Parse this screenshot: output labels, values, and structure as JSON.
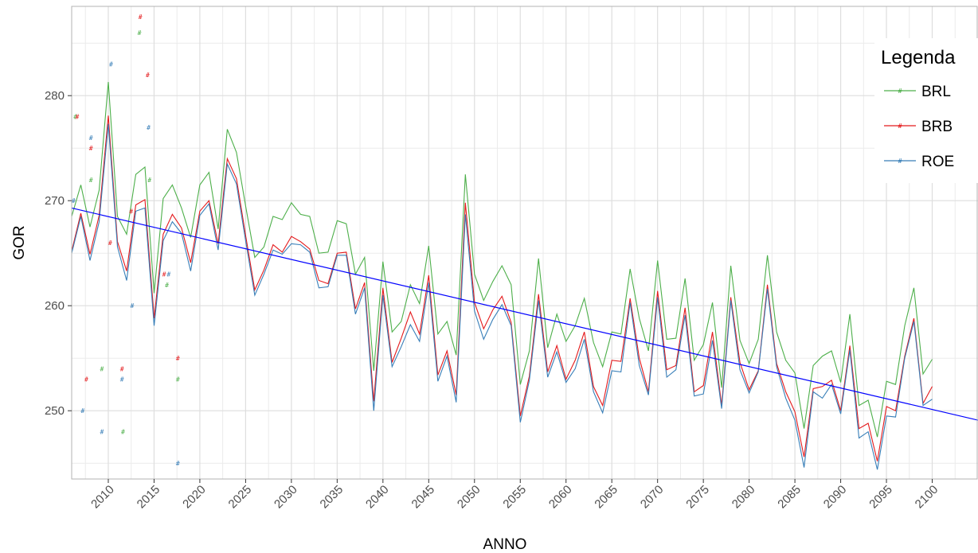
{
  "chart_data": {
    "type": "line",
    "title": "",
    "xlabel": "ANNO",
    "ylabel": "GOR",
    "xlim": [
      2006,
      2105
    ],
    "ylim": [
      243.5,
      288.5
    ],
    "x_ticks": [
      2010,
      2015,
      2020,
      2025,
      2030,
      2035,
      2040,
      2045,
      2050,
      2055,
      2060,
      2065,
      2070,
      2075,
      2080,
      2085,
      2090,
      2095,
      2100
    ],
    "y_ticks": [
      250,
      260,
      270,
      280
    ],
    "grid": true,
    "legend": {
      "title": "Legenda",
      "position": "right",
      "entries": [
        "BRL",
        "BRB",
        "ROE"
      ]
    },
    "x": [
      2006,
      2007,
      2008,
      2009,
      2010,
      2011,
      2012,
      2013,
      2014,
      2015,
      2016,
      2017,
      2018,
      2019,
      2020,
      2021,
      2022,
      2023,
      2024,
      2025,
      2026,
      2027,
      2028,
      2029,
      2030,
      2031,
      2032,
      2033,
      2034,
      2035,
      2036,
      2037,
      2038,
      2039,
      2040,
      2041,
      2042,
      2043,
      2044,
      2045,
      2046,
      2047,
      2048,
      2049,
      2050,
      2051,
      2052,
      2053,
      2054,
      2055,
      2056,
      2057,
      2058,
      2059,
      2060,
      2061,
      2062,
      2063,
      2064,
      2065,
      2066,
      2067,
      2068,
      2069,
      2070,
      2071,
      2072,
      2073,
      2074,
      2075,
      2076,
      2077,
      2078,
      2079,
      2080,
      2081,
      2082,
      2083,
      2084,
      2085,
      2086,
      2087,
      2088,
      2089,
      2090,
      2091,
      2092,
      2093,
      2094,
      2095,
      2096,
      2097,
      2098,
      2099,
      2100
    ],
    "series": [
      {
        "name": "BRL",
        "color": "#4daf4a",
        "values": [
          268.5,
          271.5,
          267.5,
          271,
          281.3,
          268.5,
          266.8,
          272.5,
          273.2,
          261.2,
          270.2,
          271.5,
          269.3,
          266.5,
          271.5,
          272.7,
          267.3,
          276.8,
          274.6,
          269.5,
          264.6,
          265.6,
          268.5,
          268.2,
          269.8,
          268.7,
          268.5,
          265,
          265.1,
          268.1,
          267.8,
          263,
          264.6,
          253.8,
          264.2,
          257.5,
          258.5,
          262,
          260.2,
          265.7,
          257.3,
          258.5,
          255.3,
          272.5,
          263,
          260.5,
          262.3,
          263.8,
          262,
          252.5,
          255.7,
          264.5,
          256,
          259.2,
          256.6,
          258.1,
          260.7,
          256.5,
          254.2,
          257.5,
          257.3,
          263.5,
          258.8,
          255.7,
          264.3,
          256.8,
          256.9,
          262.6,
          254.8,
          256.3,
          260.3,
          252.2,
          263.8,
          256.7,
          254.5,
          256.8,
          264.8,
          257.5,
          254.8,
          253.6,
          248.3,
          254.3,
          255.2,
          255.7,
          252.7,
          259.2,
          250.5,
          251,
          247.5,
          252.8,
          252.5,
          258.1,
          261.7,
          253.5,
          254.9
        ]
      },
      {
        "name": "BRB",
        "color": "#e41a1c",
        "values": [
          265.2,
          268.8,
          264.9,
          268.6,
          278.1,
          266.1,
          263.3,
          269.6,
          270.1,
          258.8,
          266.8,
          268.7,
          267.4,
          264.1,
          269,
          270,
          265.9,
          274,
          272.1,
          266.7,
          261.5,
          263.4,
          265.8,
          265.1,
          266.6,
          266.1,
          265.4,
          262.4,
          262.1,
          265,
          265.1,
          259.7,
          262.2,
          250.9,
          261.7,
          254.6,
          256.9,
          259.4,
          257.3,
          262.9,
          253.4,
          255.7,
          251.5,
          269.8,
          260.3,
          257.8,
          259.6,
          260.9,
          258.4,
          249.5,
          253.3,
          261.1,
          253.7,
          256.2,
          253,
          254.8,
          257.5,
          252.3,
          250.5,
          254.8,
          254.7,
          260.7,
          255,
          251.8,
          261.4,
          253.9,
          254.3,
          259.8,
          251.8,
          252.4,
          257.5,
          250.5,
          260.8,
          254.6,
          252,
          253.8,
          262,
          254.5,
          251.8,
          249.9,
          245.6,
          252.1,
          252.3,
          252.9,
          250,
          256.2,
          248.3,
          248.8,
          245.2,
          250.4,
          250,
          255.2,
          258.8,
          250.7,
          252.3
        ]
      },
      {
        "name": "ROE",
        "color": "#377eb8",
        "values": [
          265,
          268.5,
          264.3,
          268,
          277.3,
          265.6,
          262.4,
          269,
          269.3,
          258.1,
          266.2,
          268,
          266.9,
          263.3,
          268.6,
          269.7,
          265.3,
          273.5,
          271.6,
          266.2,
          261,
          263,
          265.3,
          264.9,
          265.9,
          265.8,
          265.1,
          261.7,
          261.8,
          264.8,
          264.8,
          259.2,
          261.7,
          250,
          261,
          254.2,
          256.1,
          258.2,
          256.6,
          262.2,
          252.8,
          255.2,
          250.8,
          268.7,
          259.5,
          256.8,
          258.7,
          260.1,
          258.1,
          248.9,
          252.9,
          260.5,
          253.2,
          255.6,
          252.7,
          254,
          256.8,
          251.8,
          249.8,
          253.8,
          253.7,
          260.3,
          254.3,
          251.5,
          260.8,
          253.2,
          253.9,
          259.1,
          251.4,
          251.6,
          256.7,
          250.2,
          260.5,
          253.9,
          251.7,
          253.7,
          261.6,
          254.2,
          251.2,
          249.1,
          244.6,
          251.8,
          251.2,
          252.5,
          249.7,
          255.8,
          247.4,
          248,
          244.4,
          249.5,
          249.4,
          255,
          258.5,
          250.5,
          251.1
        ]
      },
      {
        "name": "",
        "color": "#0000ff",
        "x": [
          2006,
          2105
        ],
        "values": [
          269.3,
          249.1
        ]
      }
    ],
    "observations": [
      {
        "series": "BRL",
        "color": "#4daf4a",
        "points": [
          [
            2006.4,
            278
          ],
          [
            2008.1,
            272
          ],
          [
            2009.3,
            254
          ],
          [
            2011.6,
            248
          ],
          [
            2013.4,
            286
          ],
          [
            2014.5,
            272
          ],
          [
            2016.4,
            262
          ],
          [
            2017.6,
            253
          ]
        ]
      },
      {
        "series": "BRB",
        "color": "#e41a1c",
        "points": [
          [
            2006.6,
            278
          ],
          [
            2007.6,
            253
          ],
          [
            2008.1,
            275
          ],
          [
            2010.2,
            266
          ],
          [
            2011.5,
            254
          ],
          [
            2012.5,
            269
          ],
          [
            2013.5,
            287.5
          ],
          [
            2014.3,
            282
          ],
          [
            2016.1,
            263
          ],
          [
            2017.6,
            255
          ]
        ]
      },
      {
        "series": "ROE",
        "color": "#377eb8",
        "points": [
          [
            2006.2,
            270
          ],
          [
            2007.2,
            250
          ],
          [
            2008.1,
            276
          ],
          [
            2009.3,
            248
          ],
          [
            2010.3,
            283
          ],
          [
            2011.5,
            253
          ],
          [
            2012.6,
            260
          ],
          [
            2014.4,
            277
          ],
          [
            2016.6,
            263
          ],
          [
            2017.6,
            245
          ]
        ]
      }
    ]
  }
}
